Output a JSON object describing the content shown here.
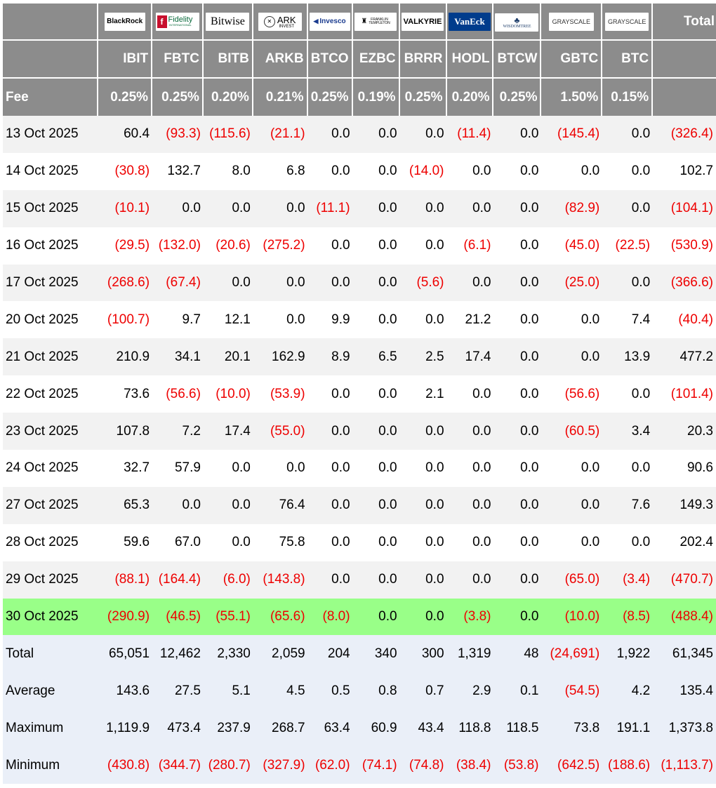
{
  "header": {
    "total_label": "Total",
    "fee_label": "Fee",
    "issuers": [
      {
        "logo_text": "BlackRock",
        "ticker": "IBIT",
        "fee": "0.25%"
      },
      {
        "logo_text": "Fidelity",
        "logo_sub": "INTERNATIONAL",
        "ticker": "FBTC",
        "fee": "0.25%"
      },
      {
        "logo_text": "Bitwise",
        "ticker": "BITB",
        "fee": "0.20%"
      },
      {
        "logo_text": "ARK",
        "logo_sub": "INVEST",
        "ticker": "ARKB",
        "fee": "0.21%"
      },
      {
        "logo_text": "Invesco",
        "ticker": "BTCO",
        "fee": "0.25%"
      },
      {
        "logo_text": "FRANKLIN",
        "logo_sub": "TEMPLETON",
        "ticker": "EZBC",
        "fee": "0.19%"
      },
      {
        "logo_text": "VALKYRIE",
        "ticker": "BRRR",
        "fee": "0.25%"
      },
      {
        "logo_text": "VanEck",
        "ticker": "HODL",
        "fee": "0.20%"
      },
      {
        "logo_text": "WISDOMTREE",
        "ticker": "BTCW",
        "fee": "0.25%"
      },
      {
        "logo_text": "GRAYSCALE",
        "ticker": "GBTC",
        "fee": "1.50%"
      },
      {
        "logo_text": "GRAYSCALE",
        "ticker": "BTC",
        "fee": "0.15%"
      }
    ]
  },
  "rows": [
    {
      "date": "13 Oct 2025",
      "values": [
        "60.4",
        "(93.3)",
        "(115.6)",
        "(21.1)",
        "0.0",
        "0.0",
        "0.0",
        "(11.4)",
        "0.0",
        "(145.4)",
        "0.0"
      ],
      "total": "(326.4)"
    },
    {
      "date": "14 Oct 2025",
      "values": [
        "(30.8)",
        "132.7",
        "8.0",
        "6.8",
        "0.0",
        "0.0",
        "(14.0)",
        "0.0",
        "0.0",
        "0.0",
        "0.0"
      ],
      "total": "102.7"
    },
    {
      "date": "15 Oct 2025",
      "values": [
        "(10.1)",
        "0.0",
        "0.0",
        "0.0",
        "(11.1)",
        "0.0",
        "0.0",
        "0.0",
        "0.0",
        "(82.9)",
        "0.0"
      ],
      "total": "(104.1)"
    },
    {
      "date": "16 Oct 2025",
      "values": [
        "(29.5)",
        "(132.0)",
        "(20.6)",
        "(275.2)",
        "0.0",
        "0.0",
        "0.0",
        "(6.1)",
        "0.0",
        "(45.0)",
        "(22.5)"
      ],
      "total": "(530.9)"
    },
    {
      "date": "17 Oct 2025",
      "values": [
        "(268.6)",
        "(67.4)",
        "0.0",
        "0.0",
        "0.0",
        "0.0",
        "(5.6)",
        "0.0",
        "0.0",
        "(25.0)",
        "0.0"
      ],
      "total": "(366.6)"
    },
    {
      "date": "20 Oct 2025",
      "values": [
        "(100.7)",
        "9.7",
        "12.1",
        "0.0",
        "9.9",
        "0.0",
        "0.0",
        "21.2",
        "0.0",
        "0.0",
        "7.4"
      ],
      "total": "(40.4)"
    },
    {
      "date": "21 Oct 2025",
      "values": [
        "210.9",
        "34.1",
        "20.1",
        "162.9",
        "8.9",
        "6.5",
        "2.5",
        "17.4",
        "0.0",
        "0.0",
        "13.9"
      ],
      "total": "477.2"
    },
    {
      "date": "22 Oct 2025",
      "values": [
        "73.6",
        "(56.6)",
        "(10.0)",
        "(53.9)",
        "0.0",
        "0.0",
        "2.1",
        "0.0",
        "0.0",
        "(56.6)",
        "0.0"
      ],
      "total": "(101.4)"
    },
    {
      "date": "23 Oct 2025",
      "values": [
        "107.8",
        "7.2",
        "17.4",
        "(55.0)",
        "0.0",
        "0.0",
        "0.0",
        "0.0",
        "0.0",
        "(60.5)",
        "3.4"
      ],
      "total": "20.3"
    },
    {
      "date": "24 Oct 2025",
      "values": [
        "32.7",
        "57.9",
        "0.0",
        "0.0",
        "0.0",
        "0.0",
        "0.0",
        "0.0",
        "0.0",
        "0.0",
        "0.0"
      ],
      "total": "90.6"
    },
    {
      "date": "27 Oct 2025",
      "values": [
        "65.3",
        "0.0",
        "0.0",
        "76.4",
        "0.0",
        "0.0",
        "0.0",
        "0.0",
        "0.0",
        "0.0",
        "7.6"
      ],
      "total": "149.3"
    },
    {
      "date": "28 Oct 2025",
      "values": [
        "59.6",
        "67.0",
        "0.0",
        "75.8",
        "0.0",
        "0.0",
        "0.0",
        "0.0",
        "0.0",
        "0.0",
        "0.0"
      ],
      "total": "202.4"
    },
    {
      "date": "29 Oct 2025",
      "values": [
        "(88.1)",
        "(164.4)",
        "(6.0)",
        "(143.8)",
        "0.0",
        "0.0",
        "0.0",
        "0.0",
        "0.0",
        "(65.0)",
        "(3.4)"
      ],
      "total": "(470.7)"
    },
    {
      "date": "30 Oct 2025",
      "values": [
        "(290.9)",
        "(46.5)",
        "(55.1)",
        "(65.6)",
        "(8.0)",
        "0.0",
        "0.0",
        "(3.8)",
        "0.0",
        "(10.0)",
        "(8.5)"
      ],
      "total": "(488.4)",
      "highlight": true
    }
  ],
  "stats": [
    {
      "label": "Total",
      "values": [
        "65,051",
        "12,462",
        "2,330",
        "2,059",
        "204",
        "340",
        "300",
        "1,319",
        "48",
        "(24,691)",
        "1,922"
      ],
      "total": "61,345"
    },
    {
      "label": "Average",
      "values": [
        "143.6",
        "27.5",
        "5.1",
        "4.5",
        "0.5",
        "0.8",
        "0.7",
        "2.9",
        "0.1",
        "(54.5)",
        "4.2"
      ],
      "total": "135.4"
    },
    {
      "label": "Maximum",
      "values": [
        "1,119.9",
        "473.4",
        "237.9",
        "268.7",
        "63.4",
        "60.9",
        "43.4",
        "118.8",
        "118.5",
        "73.8",
        "191.1"
      ],
      "total": "1,373.8"
    },
    {
      "label": "Minimum",
      "values": [
        "(430.8)",
        "(344.7)",
        "(280.7)",
        "(327.9)",
        "(62.0)",
        "(74.1)",
        "(74.8)",
        "(38.4)",
        "(53.8)",
        "(642.5)",
        "(188.6)"
      ],
      "total": "(1,113.7)"
    }
  ],
  "colors": {
    "header_bg": "#8c8c8c",
    "negative": "#ee0000",
    "highlight": "#99ff88",
    "stats_bg": "#eaeff8",
    "odd_row": "#f2f2f2"
  }
}
